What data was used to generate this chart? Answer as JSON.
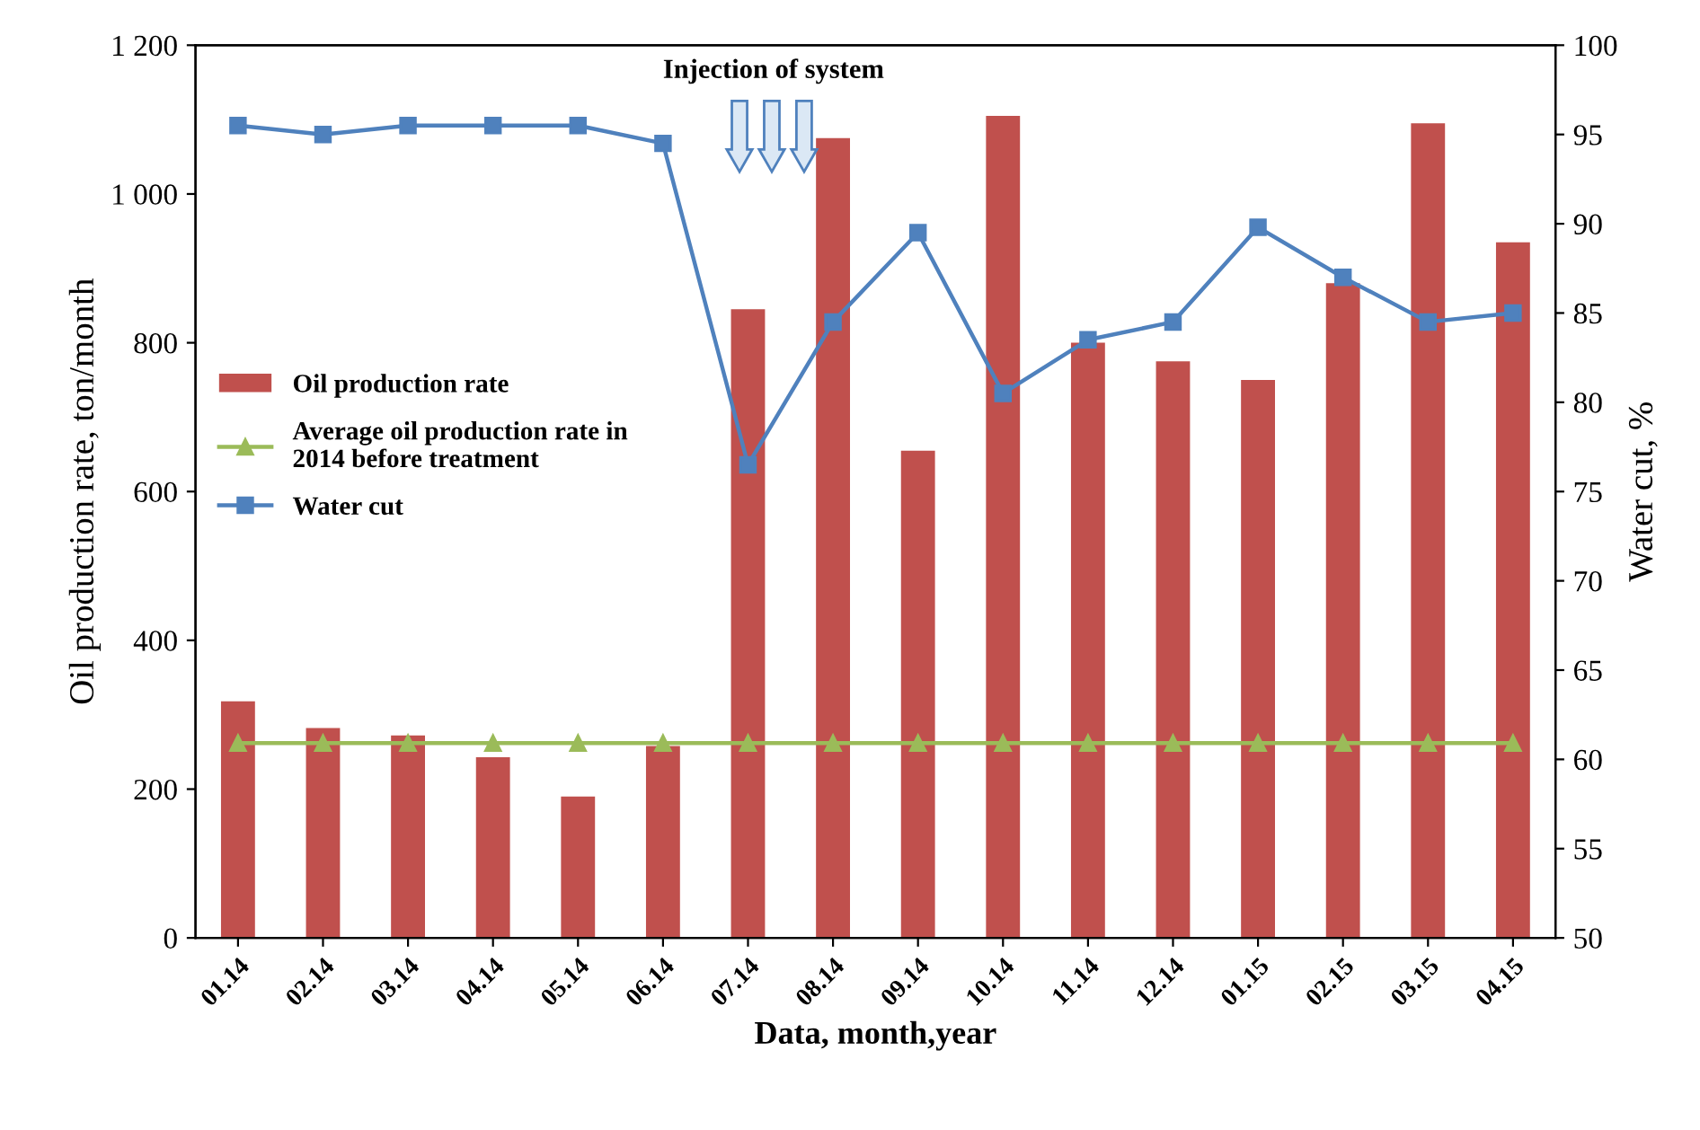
{
  "chart_data": {
    "type": "bar",
    "xlabel": "Data, month,year",
    "ylabel": "Oil production rate, ton/month",
    "y2label": "Water cut, %",
    "categories": [
      "01.14",
      "02.14",
      "03.14",
      "04.14",
      "05.14",
      "06.14",
      "07.14",
      "08.14",
      "09.14",
      "10.14",
      "11.14",
      "12.14",
      "01.15",
      "02.15",
      "03.15",
      "04.15"
    ],
    "series": [
      {
        "name": "Oil production rate",
        "color": "#c0504d",
        "values": [
          318,
          282,
          272,
          243,
          190,
          258,
          845,
          1075,
          655,
          1105,
          800,
          775,
          750,
          880,
          1095,
          935
        ]
      },
      {
        "name": "Average oil production rate in 2014 before treatment",
        "type": "line",
        "color": "#9bbb59",
        "marker": "triangle",
        "values": [
          262,
          262,
          262,
          262,
          262,
          262,
          262,
          262,
          262,
          262,
          262,
          262,
          262,
          262,
          262,
          262
        ]
      },
      {
        "name": "Water cut",
        "type": "line",
        "axis": "y2",
        "color": "#4f81bd",
        "marker": "square",
        "values": [
          95.5,
          95,
          95.5,
          95.5,
          95.5,
          94.5,
          76.5,
          84.5,
          89.5,
          80.5,
          83.5,
          84.5,
          89.8,
          87,
          84.5,
          85
        ]
      }
    ],
    "ylim": [
      0,
      1200
    ],
    "yticks": [
      0,
      200,
      400,
      600,
      800,
      {
        "value": 1000,
        "label": "1 000"
      },
      {
        "value": 1200,
        "label": "1 200"
      }
    ],
    "y2lim": [
      50,
      100
    ],
    "y2ticks": [
      50,
      55,
      60,
      65,
      70,
      75,
      80,
      85,
      90,
      95,
      100
    ],
    "annotations": [
      "Injection of system"
    ],
    "legend": "left",
    "grid": false
  }
}
